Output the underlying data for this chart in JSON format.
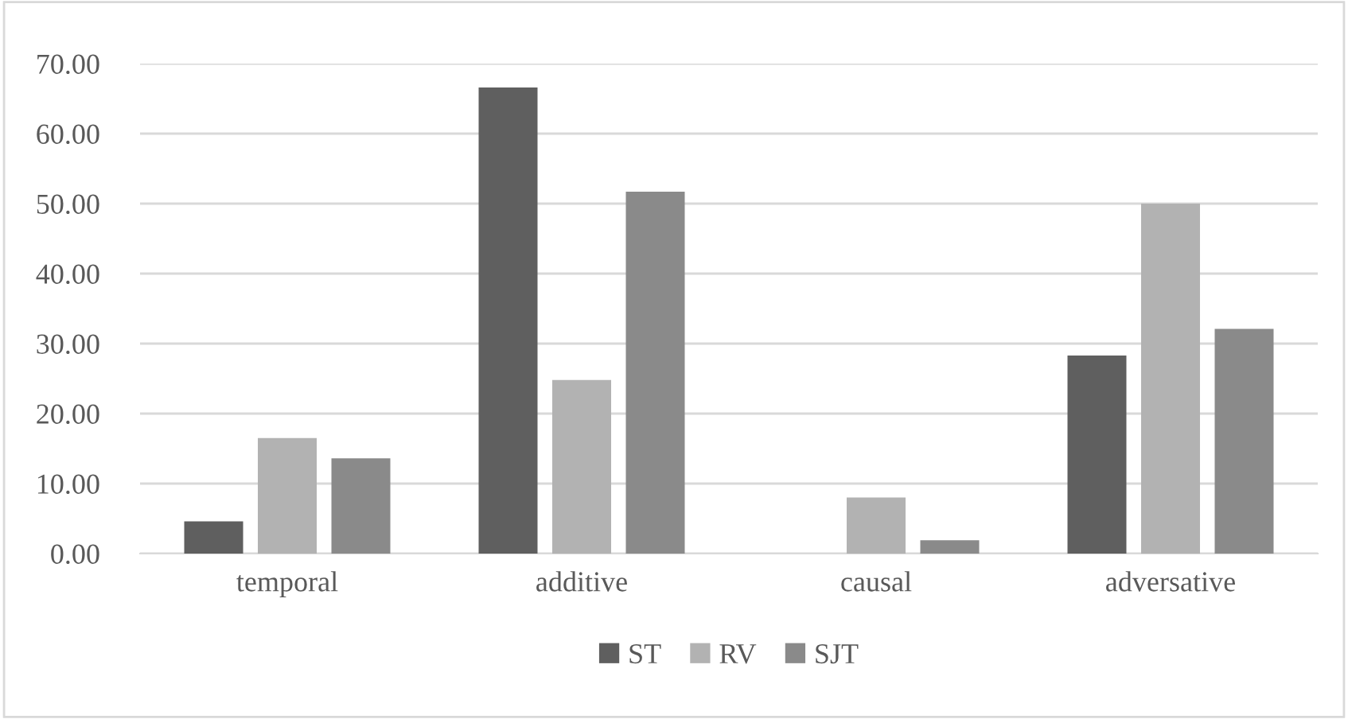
{
  "chart_data": {
    "type": "bar",
    "categories": [
      "temporal",
      "additive",
      "causal",
      "adversative"
    ],
    "series": [
      {
        "name": "ST",
        "color": "#5f5f5f",
        "values": [
          4.6,
          66.6,
          0,
          28.3
        ]
      },
      {
        "name": "RV",
        "color": "#b2b2b2",
        "values": [
          16.5,
          24.8,
          8.0,
          50.0
        ]
      },
      {
        "name": "SJT",
        "color": "#8a8a8a",
        "values": [
          13.6,
          51.7,
          1.9,
          32.1
        ]
      }
    ],
    "ylim": [
      0,
      70
    ],
    "yticks": [
      {
        "value": 0,
        "label": "0.00"
      },
      {
        "value": 10,
        "label": "10.00"
      },
      {
        "value": 20,
        "label": "20.00"
      },
      {
        "value": 30,
        "label": "30.00"
      },
      {
        "value": 40,
        "label": "40.00"
      },
      {
        "value": 50,
        "label": "50.00"
      },
      {
        "value": 60,
        "label": "60.00"
      },
      {
        "value": 70,
        "label": "70.00"
      }
    ],
    "grid": "y",
    "legend": "bottom"
  }
}
